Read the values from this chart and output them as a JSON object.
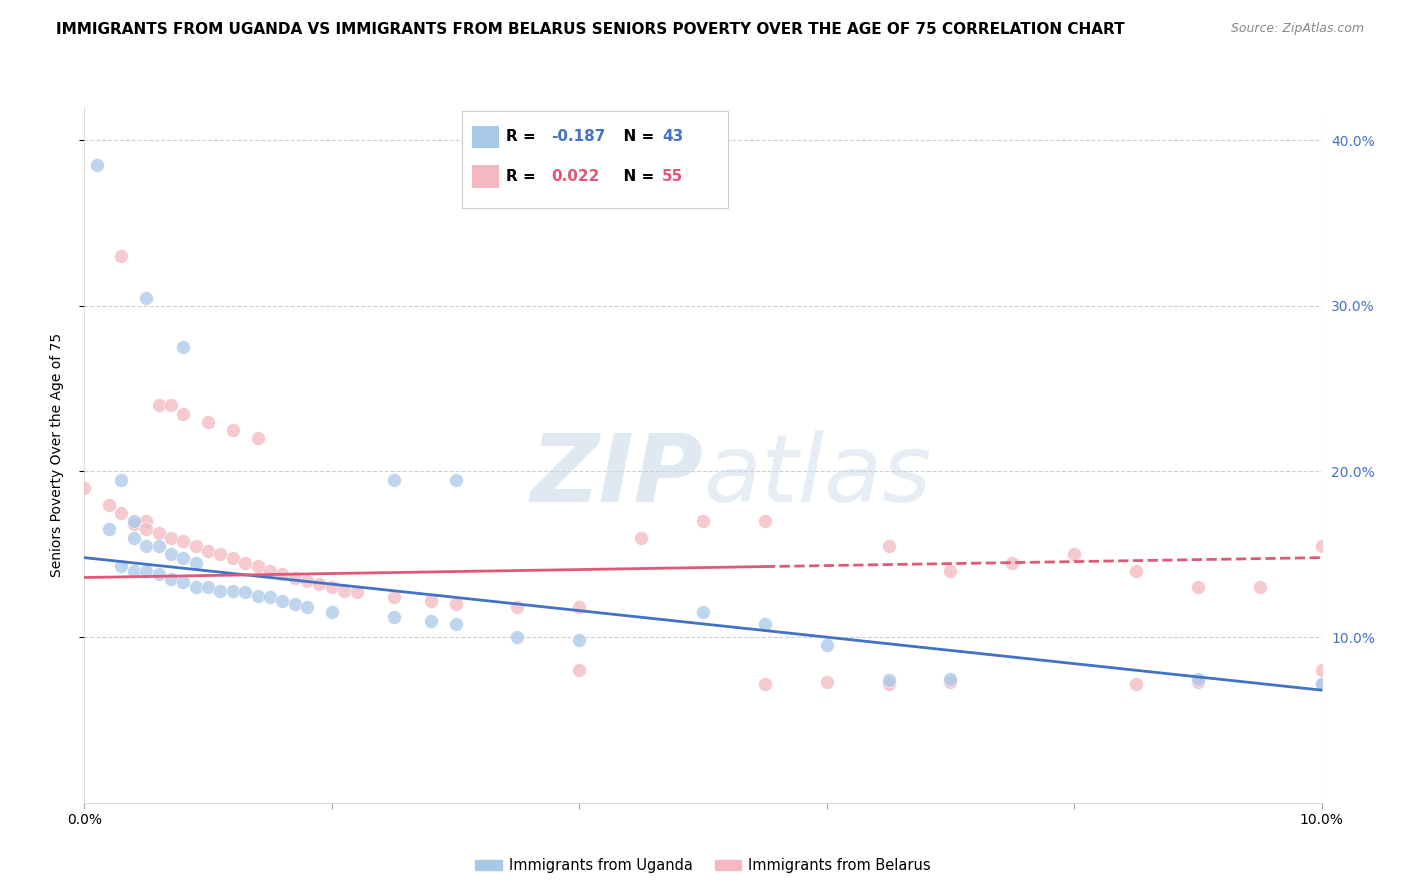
{
  "title": "IMMIGRANTS FROM UGANDA VS IMMIGRANTS FROM BELARUS SENIORS POVERTY OVER THE AGE OF 75 CORRELATION CHART",
  "source": "Source: ZipAtlas.com",
  "ylabel": "Seniors Poverty Over the Age of 75",
  "xlim": [
    0.0,
    0.1
  ],
  "ylim": [
    0.0,
    0.42
  ],
  "watermark_zip": "ZIP",
  "watermark_atlas": "atlas",
  "legend_entries": [
    {
      "label": "Immigrants from Uganda",
      "color": "#a8c8e8",
      "line_color": "#4472c4",
      "R": "-0.187",
      "N": "43"
    },
    {
      "label": "Immigrants from Belarus",
      "color": "#f4b8c0",
      "line_color": "#e05878",
      "R": "0.022",
      "N": "55"
    }
  ],
  "uganda_scatter": [
    [
      0.001,
      0.385
    ],
    [
      0.005,
      0.305
    ],
    [
      0.008,
      0.275
    ],
    [
      0.003,
      0.195
    ],
    [
      0.004,
      0.17
    ],
    [
      0.025,
      0.195
    ],
    [
      0.03,
      0.195
    ],
    [
      0.002,
      0.165
    ],
    [
      0.004,
      0.16
    ],
    [
      0.005,
      0.155
    ],
    [
      0.006,
      0.155
    ],
    [
      0.007,
      0.15
    ],
    [
      0.008,
      0.148
    ],
    [
      0.009,
      0.145
    ],
    [
      0.003,
      0.143
    ],
    [
      0.004,
      0.14
    ],
    [
      0.005,
      0.14
    ],
    [
      0.006,
      0.138
    ],
    [
      0.007,
      0.135
    ],
    [
      0.008,
      0.133
    ],
    [
      0.009,
      0.13
    ],
    [
      0.01,
      0.13
    ],
    [
      0.011,
      0.128
    ],
    [
      0.012,
      0.128
    ],
    [
      0.013,
      0.127
    ],
    [
      0.014,
      0.125
    ],
    [
      0.015,
      0.124
    ],
    [
      0.016,
      0.122
    ],
    [
      0.017,
      0.12
    ],
    [
      0.018,
      0.118
    ],
    [
      0.02,
      0.115
    ],
    [
      0.025,
      0.112
    ],
    [
      0.028,
      0.11
    ],
    [
      0.03,
      0.108
    ],
    [
      0.035,
      0.1
    ],
    [
      0.04,
      0.098
    ],
    [
      0.05,
      0.115
    ],
    [
      0.055,
      0.108
    ],
    [
      0.06,
      0.095
    ],
    [
      0.065,
      0.074
    ],
    [
      0.07,
      0.075
    ],
    [
      0.09,
      0.075
    ],
    [
      0.1,
      0.072
    ]
  ],
  "belarus_scatter": [
    [
      0.003,
      0.33
    ],
    [
      0.0,
      0.19
    ],
    [
      0.002,
      0.18
    ],
    [
      0.003,
      0.175
    ],
    [
      0.005,
      0.17
    ],
    [
      0.006,
      0.24
    ],
    [
      0.007,
      0.24
    ],
    [
      0.008,
      0.235
    ],
    [
      0.01,
      0.23
    ],
    [
      0.012,
      0.225
    ],
    [
      0.014,
      0.22
    ],
    [
      0.004,
      0.168
    ],
    [
      0.005,
      0.165
    ],
    [
      0.006,
      0.163
    ],
    [
      0.007,
      0.16
    ],
    [
      0.008,
      0.158
    ],
    [
      0.009,
      0.155
    ],
    [
      0.01,
      0.152
    ],
    [
      0.011,
      0.15
    ],
    [
      0.012,
      0.148
    ],
    [
      0.013,
      0.145
    ],
    [
      0.014,
      0.143
    ],
    [
      0.015,
      0.14
    ],
    [
      0.016,
      0.138
    ],
    [
      0.017,
      0.136
    ],
    [
      0.018,
      0.134
    ],
    [
      0.019,
      0.132
    ],
    [
      0.02,
      0.13
    ],
    [
      0.021,
      0.128
    ],
    [
      0.022,
      0.127
    ],
    [
      0.025,
      0.124
    ],
    [
      0.028,
      0.122
    ],
    [
      0.03,
      0.12
    ],
    [
      0.035,
      0.118
    ],
    [
      0.04,
      0.118
    ],
    [
      0.045,
      0.16
    ],
    [
      0.05,
      0.17
    ],
    [
      0.055,
      0.17
    ],
    [
      0.06,
      0.073
    ],
    [
      0.065,
      0.072
    ],
    [
      0.065,
      0.155
    ],
    [
      0.07,
      0.073
    ],
    [
      0.07,
      0.14
    ],
    [
      0.075,
      0.145
    ],
    [
      0.08,
      0.15
    ],
    [
      0.085,
      0.14
    ],
    [
      0.09,
      0.073
    ],
    [
      0.055,
      0.072
    ],
    [
      0.1,
      0.155
    ],
    [
      0.1,
      0.072
    ],
    [
      0.085,
      0.072
    ],
    [
      0.09,
      0.13
    ],
    [
      0.095,
      0.13
    ],
    [
      0.1,
      0.08
    ],
    [
      0.04,
      0.08
    ]
  ],
  "uganda_line": {
    "x0": 0.0,
    "x1": 0.1,
    "y0": 0.148,
    "y1": 0.068
  },
  "belarus_line": {
    "x0": 0.0,
    "x1": 0.1,
    "y0": 0.136,
    "y1": 0.148
  },
  "background_color": "#ffffff",
  "grid_color": "#d0d0d0",
  "title_fontsize": 11,
  "source_fontsize": 9,
  "tick_fontsize": 10,
  "ylabel_fontsize": 10,
  "scatter_size": 100,
  "scatter_alpha": 0.75
}
